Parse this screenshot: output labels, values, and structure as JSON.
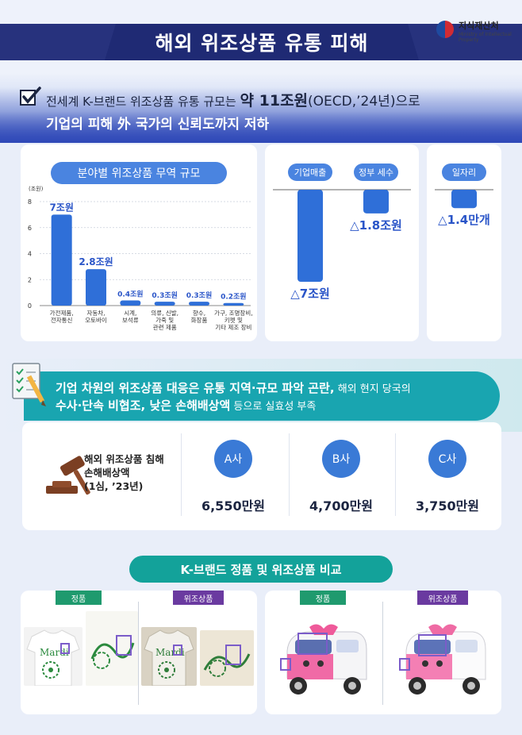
{
  "header": {
    "title": "해외 위조상품 유통 피해",
    "logo_name": "지식재산처",
    "logo_sub": "Ministry of Intellectual Property"
  },
  "headline": {
    "line1_prefix": "전세계 K-브랜드 위조상품 유통 규모는 ",
    "line1_emphasis": "약 11조원",
    "line1_suffix": "(OECD,’24년)으로",
    "line2": "기업의 피해 外 국가의 신뢰도까지 저하"
  },
  "trade_card": {
    "pill": "분야별 위조상품 무역 규모",
    "unit": "(조원)"
  },
  "chart_data": [
    {
      "type": "bar",
      "title": "분야별 위조상품 무역 규모",
      "ylabel": "(조원)",
      "categories": [
        "가전제품,\n전자통신",
        "자동차,\n오토바이",
        "시계,\n보석류",
        "의류, 신발,\n가죽 및\n관련 제품",
        "향수,\n화장품",
        "가구, 조명장비,\n키펫 및\n기타 제조 장비"
      ],
      "values": [
        7,
        2.8,
        0.4,
        0.3,
        0.3,
        0.2
      ],
      "data_labels": [
        "7조원",
        "2.8조원",
        "0.4조원",
        "0.3조원",
        "0.3조원",
        "0.2조원"
      ],
      "yticks": [
        0,
        2,
        4,
        6,
        8
      ],
      "ylim": [
        0,
        8
      ],
      "grid": true,
      "color": "#2f6fd8"
    },
    {
      "type": "bar",
      "categories": [
        "기업매출",
        "정부 세수"
      ],
      "values": [
        -7,
        -1.8
      ],
      "data_labels": [
        "△7조원",
        "△1.8조원"
      ],
      "color": "#2f6fd8"
    },
    {
      "type": "bar",
      "categories": [
        "일자리"
      ],
      "values": [
        -1.4
      ],
      "data_labels": [
        "△1.4만개"
      ],
      "color": "#2f6fd8"
    }
  ],
  "section2": {
    "l1_bold": "기업 차원의 위조상품 대응은 유통 지역·규모 파악 곤란,",
    "l1_rest": " 해외 현지 당국의",
    "l2_bold": "수사·단속 비협조, 낮은 손해배상액",
    "l2_rest": " 등으로 실효성 부족",
    "damage_title_1": "해외 위조상품 침해",
    "damage_title_2": "손해배상액",
    "damage_title_3": "(1심, ’23년)",
    "companies": [
      {
        "name": "A사",
        "amount": "6,550만원"
      },
      {
        "name": "B사",
        "amount": "4,700만원"
      },
      {
        "name": "C사",
        "amount": "3,750만원"
      }
    ]
  },
  "section3": {
    "pill": "K-브랜드 정품 및 위조상품 비교",
    "genuine": "정품",
    "fake": "위조상품",
    "shirt_text": "Mardi"
  },
  "colors": {
    "navy": "#1f2a74",
    "blue": "#2f6fd8",
    "teal": "#19a5b0",
    "green": "#13a29a",
    "purple": "#6a3aa0"
  }
}
